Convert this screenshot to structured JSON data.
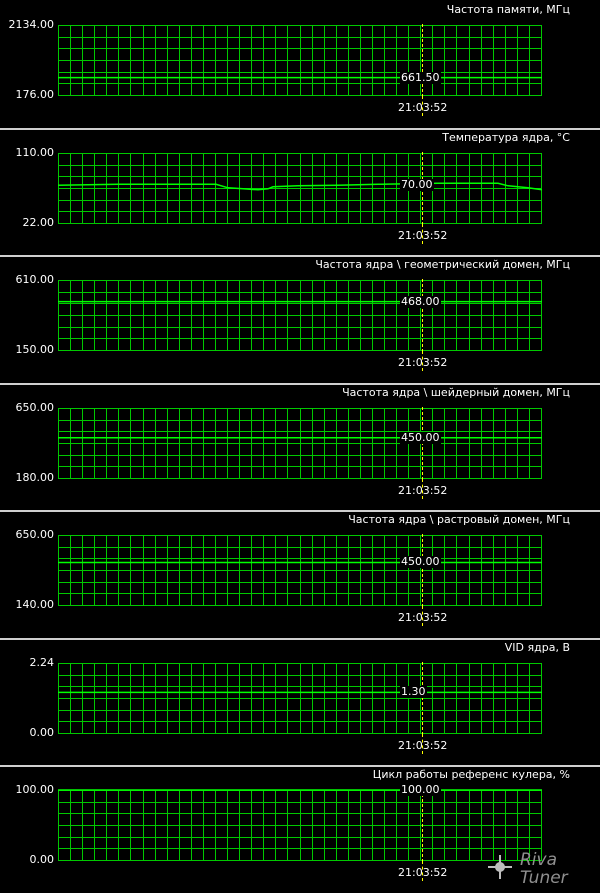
{
  "cursor_time": "21:03:52",
  "colors": {
    "grid": "#00c800",
    "line": "#00ff00",
    "cursor": "#ffff00",
    "separator": "#cfcfcf"
  },
  "panels": [
    {
      "title": "Частота памяти, МГц",
      "ymax": "2134.00",
      "ymin": "176.00",
      "value": "661.50",
      "ymax_num": 2134,
      "ymin_num": 176,
      "value_num": 661.5,
      "trace": "flat"
    },
    {
      "title": "Температура ядра, °С",
      "ymax": "110.00",
      "ymin": "22.00",
      "value": "70.00",
      "ymax_num": 110,
      "ymin_num": 22,
      "value_num": 70,
      "trace": "temperature"
    },
    {
      "title": "Частота ядра \\ геометрический домен, МГц",
      "ymax": "610.00",
      "ymin": "150.00",
      "value": "468.00",
      "ymax_num": 610,
      "ymin_num": 150,
      "value_num": 468,
      "trace": "flat"
    },
    {
      "title": "Частота ядра \\ шейдерный домен, МГц",
      "ymax": "650.00",
      "ymin": "180.00",
      "value": "450.00",
      "ymax_num": 650,
      "ymin_num": 180,
      "value_num": 450,
      "trace": "flat"
    },
    {
      "title": "Частота ядра \\ растровый домен, МГц",
      "ymax": "650.00",
      "ymin": "140.00",
      "value": "450.00",
      "ymax_num": 650,
      "ymin_num": 140,
      "value_num": 450,
      "trace": "flat"
    },
    {
      "title": "VID ядра, В",
      "ymax": "2.24",
      "ymin": "0.00",
      "value": "1.30",
      "ymax_num": 2.24,
      "ymin_num": 0,
      "value_num": 1.3,
      "trace": "flat"
    },
    {
      "title": "Цикл работы референс кулера, %",
      "ymax": "100.00",
      "ymin": "0.00",
      "value": "100.00",
      "ymax_num": 100,
      "ymin_num": 0,
      "value_num": 100,
      "trace": "flat"
    }
  ],
  "logo": {
    "text": "RivaTuner"
  }
}
